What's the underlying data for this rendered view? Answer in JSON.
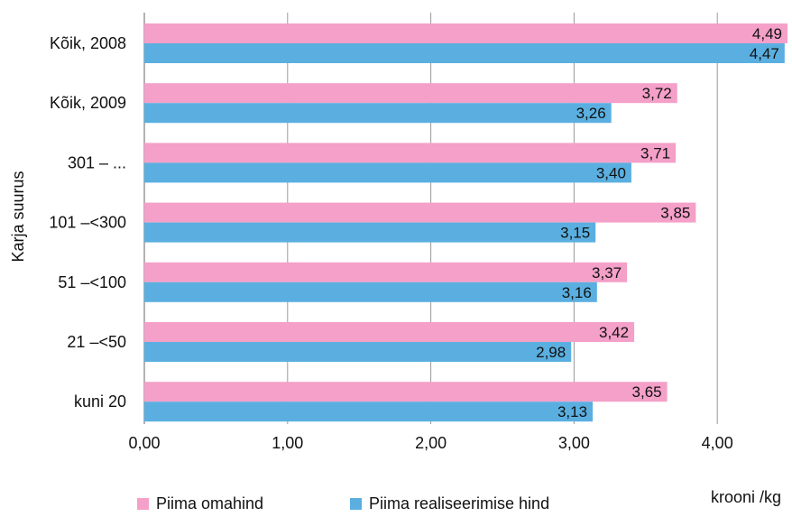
{
  "chart_data": {
    "type": "bar",
    "orientation": "horizontal",
    "ylabel": "Karja suurus",
    "xlabel": "krooni /kg",
    "xlim": [
      0,
      4.5
    ],
    "xticks": [
      0,
      1,
      2,
      3,
      4
    ],
    "xtick_labels": [
      "0,00",
      "1,00",
      "2,00",
      "3,00",
      "4,00"
    ],
    "grid": "vertical",
    "legend_position": "bottom-left",
    "categories": [
      "Kõik, 2008",
      "Kõik, 2009",
      "301 – ...",
      "101 –<300",
      "51 –<100",
      "21 –<50",
      "kuni 20"
    ],
    "series": [
      {
        "name": "Piima omahind",
        "color": "#f4a0c8",
        "values": [
          4.49,
          3.72,
          3.71,
          3.85,
          3.37,
          3.42,
          3.65
        ],
        "labels": [
          "4,49",
          "3,72",
          "3,71",
          "3,85",
          "3,37",
          "3,42",
          "3,65"
        ]
      },
      {
        "name": "Piima realiseerimise hind",
        "color": "#5aafe0",
        "values": [
          4.47,
          3.26,
          3.4,
          3.15,
          3.16,
          2.98,
          3.13
        ],
        "labels": [
          "4,47",
          "3,26",
          "3,40",
          "3,15",
          "3,16",
          "2,98",
          "3,13"
        ]
      }
    ]
  }
}
